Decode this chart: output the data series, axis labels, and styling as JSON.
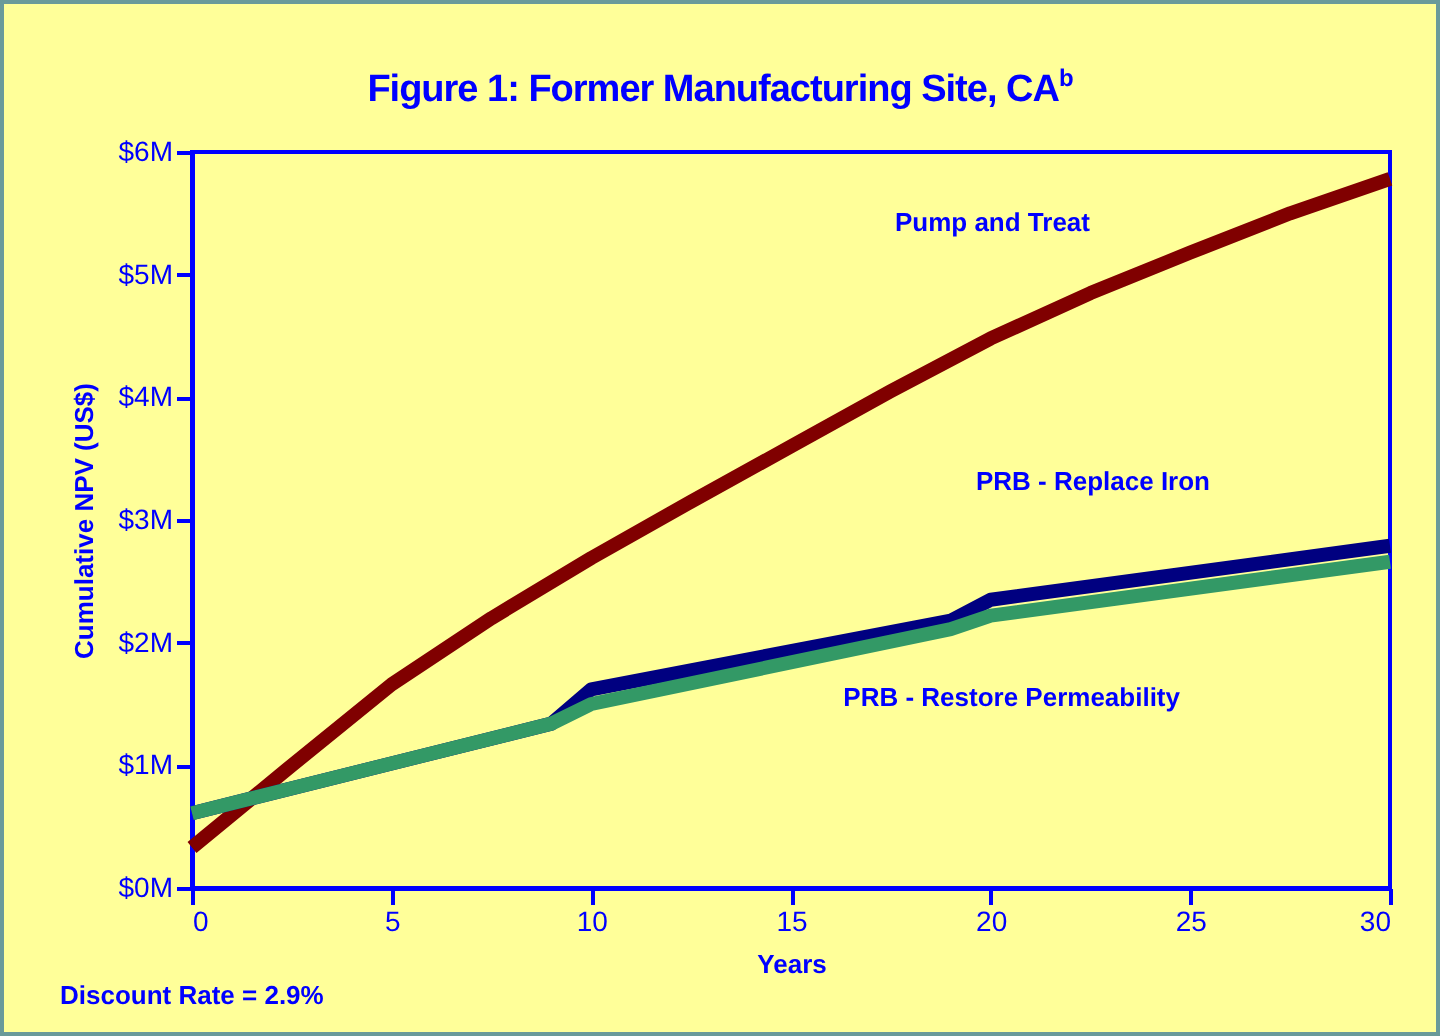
{
  "chart_data": {
    "type": "line",
    "title": "Figure 1:  Former Manufacturing Site, CA$^{b}$",
    "xlabel": "Years",
    "ylabel": "Cumulative NPV (US$)",
    "annotations": [
      "Discount Rate = 2.9%"
    ],
    "xlim": [
      0,
      30
    ],
    "xticks": [
      0,
      5,
      10,
      15,
      20,
      25,
      30
    ],
    "ylim": [
      0,
      6
    ],
    "yticks": [
      {
        "value": 0,
        "label": "$0M"
      },
      {
        "value": 1,
        "label": "$1M"
      },
      {
        "value": 2,
        "label": "$2M"
      },
      {
        "value": 3,
        "label": "$3M"
      },
      {
        "value": 4,
        "label": "$4M"
      },
      {
        "value": 5,
        "label": "$5M"
      },
      {
        "value": 6,
        "label": "$6M"
      }
    ],
    "grid": false,
    "legend": false,
    "marker": "none",
    "line_style": "solid",
    "series": [
      {
        "name": "Pump and Treat",
        "color": "#800000",
        "x": [
          0,
          2.5,
          5,
          7.5,
          10,
          12.5,
          15,
          17.5,
          20,
          22.5,
          25,
          27.5,
          30
        ],
        "values": [
          0.33,
          1.0,
          1.66,
          2.2,
          2.69,
          3.15,
          3.6,
          4.05,
          4.48,
          4.85,
          5.18,
          5.5,
          5.78
        ]
      },
      {
        "name": "PRB - Replace Iron",
        "color": "#000080",
        "x": [
          0,
          9,
          10,
          19,
          20,
          30
        ],
        "values": [
          0.61,
          1.34,
          1.62,
          2.18,
          2.35,
          2.79
        ]
      },
      {
        "name": "PRB - Restore Permeability",
        "color": "#339966",
        "x": [
          0,
          9,
          10,
          19,
          20,
          30
        ],
        "values": [
          0.61,
          1.34,
          1.5,
          2.11,
          2.22,
          2.66
        ]
      }
    ]
  }
}
